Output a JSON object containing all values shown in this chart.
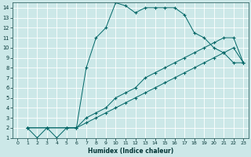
{
  "xlabel": "Humidex (Indice chaleur)",
  "bg_color": "#cce8e8",
  "grid_color": "#ffffff",
  "line_color": "#006666",
  "xlim": [
    -0.5,
    23.5
  ],
  "ylim": [
    1,
    14.5
  ],
  "xticks": [
    0,
    1,
    2,
    3,
    4,
    5,
    6,
    7,
    8,
    9,
    10,
    11,
    12,
    13,
    14,
    15,
    16,
    17,
    18,
    19,
    20,
    21,
    22,
    23
  ],
  "yticks": [
    1,
    2,
    3,
    4,
    5,
    6,
    7,
    8,
    9,
    10,
    11,
    12,
    13,
    14
  ],
  "series": [
    {
      "x": [
        1,
        2,
        3,
        4,
        5,
        6,
        7,
        8,
        9,
        10,
        11,
        12,
        13,
        14,
        15,
        16,
        17,
        18,
        19,
        20,
        21,
        22,
        23
      ],
      "y": [
        2,
        1,
        2,
        1,
        2,
        2,
        8,
        11,
        12,
        14.5,
        14.2,
        13.5,
        14,
        14,
        14,
        14,
        13.3,
        11.5,
        11,
        10,
        9.5,
        8.5,
        8.5
      ]
    },
    {
      "x": [
        1,
        3,
        5,
        6,
        7,
        8,
        9,
        10,
        11,
        12,
        13,
        14,
        15,
        16,
        17,
        18,
        19,
        20,
        21,
        22,
        23
      ],
      "y": [
        2,
        2,
        2,
        2,
        3,
        3.5,
        4,
        5,
        5.5,
        6,
        7,
        7.5,
        8,
        8.5,
        9,
        9.5,
        10,
        10.5,
        11,
        11,
        8.5
      ]
    },
    {
      "x": [
        1,
        3,
        5,
        6,
        7,
        8,
        9,
        10,
        11,
        12,
        13,
        14,
        15,
        16,
        17,
        18,
        19,
        20,
        21,
        22,
        23
      ],
      "y": [
        2,
        2,
        2,
        2,
        2.5,
        3,
        3.5,
        4,
        4.5,
        5,
        5.5,
        6,
        6.5,
        7,
        7.5,
        8,
        8.5,
        9,
        9.5,
        10,
        8.5
      ]
    }
  ]
}
